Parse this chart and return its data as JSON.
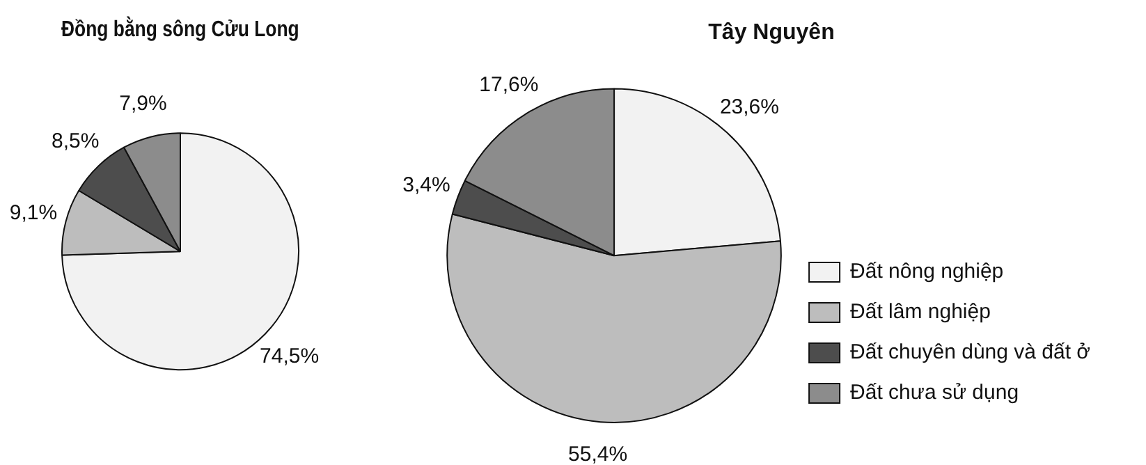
{
  "chart_data": [
    {
      "type": "pie",
      "title": "Đồng bằng sông Cửu Long",
      "categories": [
        null,
        null,
        null,
        null
      ],
      "values": [
        74.5,
        9.1,
        8.5,
        7.9
      ],
      "colors": [
        "#f2f2f2",
        "#bdbdbd",
        "#4d4d4d",
        "#8c8c8c"
      ],
      "value_labels": [
        "74,5%",
        "9,1%",
        "8,5%",
        "7,9%"
      ],
      "legend": false
    },
    {
      "type": "pie",
      "title": "Tây Nguyên",
      "categories": [
        "Đất nông nghiệp",
        "Đất lâm nghiệp",
        "Đất chuyên dùng và đất ở",
        "Đất chưa sử dụng"
      ],
      "values": [
        23.6,
        55.4,
        3.4,
        17.6
      ],
      "colors": [
        "#f2f2f2",
        "#bdbdbd",
        "#4d4d4d",
        "#8c8c8c"
      ],
      "value_labels": [
        "23,6%",
        "55,4%",
        "3,4%",
        "17,6%"
      ],
      "legend": "bottom right"
    }
  ]
}
